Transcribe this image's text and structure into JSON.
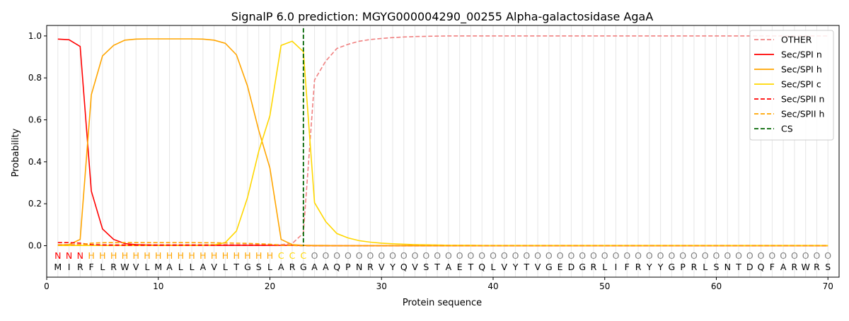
{
  "chart_data": {
    "type": "line",
    "title": "SignalP 6.0 prediction: MGYG000004290_00255 Alpha-galactosidase AgaA",
    "xlabel": "Protein sequence",
    "ylabel": "Probability",
    "xlim": [
      0,
      71
    ],
    "ylim": [
      -0.15,
      1.05
    ],
    "x_ticks": [
      0,
      10,
      20,
      30,
      40,
      50,
      60,
      70
    ],
    "y_ticks": [
      0.0,
      0.2,
      0.4,
      0.6,
      0.8,
      1.0
    ],
    "y_tick_labels": [
      "0.0",
      "0.2",
      "0.4",
      "0.6",
      "0.8",
      "1.0"
    ],
    "grid": "vertical lines at every residue",
    "legend_position": "top-right",
    "sequence": [
      "M",
      "I",
      "R",
      "F",
      "L",
      "R",
      "W",
      "V",
      "L",
      "M",
      "A",
      "L",
      "L",
      "A",
      "V",
      "L",
      "T",
      "G",
      "S",
      "L",
      "A",
      "R",
      "G",
      "A",
      "A",
      "Q",
      "P",
      "N",
      "R",
      "V",
      "Y",
      "Q",
      "V",
      "S",
      "T",
      "A",
      "E",
      "T",
      "Q",
      "L",
      "V",
      "Y",
      "T",
      "V",
      "G",
      "E",
      "D",
      "G",
      "R",
      "L",
      "I",
      "F",
      "R",
      "Y",
      "Y",
      "G",
      "P",
      "R",
      "L",
      "S",
      "N",
      "T",
      "D",
      "Q",
      "F",
      "A",
      "R",
      "W",
      "R",
      "S"
    ],
    "region_labels": [
      "N",
      "N",
      "N",
      "H",
      "H",
      "H",
      "H",
      "H",
      "H",
      "H",
      "H",
      "H",
      "H",
      "H",
      "H",
      "H",
      "H",
      "H",
      "H",
      "H",
      "C",
      "C",
      "C",
      "O",
      "O",
      "O",
      "O",
      "O",
      "O",
      "O",
      "O",
      "O",
      "O",
      "O",
      "O",
      "O",
      "O",
      "O",
      "O",
      "O",
      "O",
      "O",
      "O",
      "O",
      "O",
      "O",
      "O",
      "O",
      "O",
      "O",
      "O",
      "O",
      "O",
      "O",
      "O",
      "O",
      "O",
      "O",
      "O",
      "O",
      "O",
      "O",
      "O",
      "O",
      "O",
      "O",
      "O",
      "O",
      "O",
      "O"
    ],
    "region_colors": {
      "N": "#ff0000",
      "H": "#ffa500",
      "C": "#ffd700",
      "O": "#808080"
    },
    "cleavage_site": 23,
    "series": [
      {
        "name": "OTHER",
        "color": "#f08080",
        "dash": true,
        "values": [
          0.005,
          0.005,
          0.005,
          0.005,
          0.005,
          0.005,
          0.005,
          0.005,
          0.005,
          0.005,
          0.005,
          0.005,
          0.005,
          0.005,
          0.005,
          0.005,
          0.005,
          0.005,
          0.005,
          0.005,
          0.005,
          0.01,
          0.06,
          0.79,
          0.88,
          0.94,
          0.96,
          0.975,
          0.983,
          0.988,
          0.992,
          0.995,
          0.997,
          0.998,
          0.999,
          1,
          1,
          1,
          1,
          1,
          1,
          1,
          1,
          1,
          1,
          1,
          1,
          1,
          1,
          1,
          1,
          1,
          1,
          1,
          1,
          1,
          1,
          1,
          1,
          1,
          1,
          1,
          1,
          1,
          1,
          1,
          1,
          1,
          1,
          1
        ]
      },
      {
        "name": "Sec/SPI n",
        "color": "#ff0000",
        "dash": false,
        "values": [
          0.985,
          0.982,
          0.95,
          0.26,
          0.08,
          0.03,
          0.01,
          0.005,
          0.003,
          0.002,
          0.002,
          0.002,
          0.002,
          0.002,
          0.002,
          0.002,
          0.002,
          0.002,
          0.002,
          0.002,
          0.002,
          0.002,
          0.001,
          0,
          0,
          0,
          0,
          0,
          0,
          0,
          0,
          0,
          0,
          0,
          0,
          0,
          0,
          0,
          0,
          0,
          0,
          0,
          0,
          0,
          0,
          0,
          0,
          0,
          0,
          0,
          0,
          0,
          0,
          0,
          0,
          0,
          0,
          0,
          0,
          0,
          0,
          0,
          0,
          0,
          0,
          0,
          0,
          0,
          0,
          0
        ]
      },
      {
        "name": "Sec/SPI h",
        "color": "#ffa500",
        "dash": false,
        "values": [
          0.003,
          0.005,
          0.03,
          0.72,
          0.905,
          0.955,
          0.98,
          0.985,
          0.986,
          0.986,
          0.986,
          0.986,
          0.986,
          0.985,
          0.98,
          0.965,
          0.91,
          0.76,
          0.55,
          0.37,
          0.03,
          0.005,
          0.002,
          0.001,
          0.001,
          0,
          0,
          0,
          0,
          0,
          0,
          0,
          0,
          0,
          0,
          0,
          0,
          0,
          0,
          0,
          0,
          0,
          0,
          0,
          0,
          0,
          0,
          0,
          0,
          0,
          0,
          0,
          0,
          0,
          0,
          0,
          0,
          0,
          0,
          0,
          0,
          0,
          0,
          0,
          0,
          0,
          0,
          0,
          0,
          0
        ]
      },
      {
        "name": "Sec/SPI c",
        "color": "#ffd700",
        "dash": false,
        "values": [
          0.001,
          0.001,
          0.001,
          0.001,
          0.001,
          0.001,
          0.001,
          0.001,
          0.001,
          0.001,
          0.001,
          0.001,
          0.001,
          0.002,
          0.004,
          0.015,
          0.07,
          0.23,
          0.45,
          0.62,
          0.955,
          0.975,
          0.925,
          0.205,
          0.115,
          0.058,
          0.037,
          0.024,
          0.017,
          0.012,
          0.009,
          0.007,
          0.005,
          0.004,
          0.003,
          0.002,
          0.002,
          0.002,
          0.001,
          0.001,
          0.001,
          0.001,
          0.001,
          0.001,
          0.001,
          0.001,
          0.001,
          0.001,
          0.001,
          0.001,
          0.001,
          0.001,
          0.001,
          0.001,
          0.001,
          0.001,
          0.001,
          0.001,
          0.001,
          0.001,
          0.001,
          0.001,
          0.001,
          0.001,
          0.001,
          0.001,
          0.001,
          0.001,
          0.001,
          0.001
        ]
      },
      {
        "name": "Sec/SPII n",
        "color": "#ff0000",
        "dash": true,
        "values": [
          0.015,
          0.015,
          0.012,
          0.005,
          0.003,
          0.002,
          0.002,
          0.002,
          0.002,
          0.002,
          0.002,
          0.002,
          0.002,
          0.002,
          0.002,
          0.002,
          0.002,
          0.002,
          0.002,
          0.002,
          0.001,
          0.001,
          0,
          0,
          0,
          0,
          0,
          0,
          0,
          0,
          0,
          0,
          0,
          0,
          0,
          0,
          0,
          0,
          0,
          0,
          0,
          0,
          0,
          0,
          0,
          0,
          0,
          0,
          0,
          0,
          0,
          0,
          0,
          0,
          0,
          0,
          0,
          0,
          0,
          0,
          0,
          0,
          0,
          0,
          0,
          0,
          0,
          0,
          0,
          0
        ]
      },
      {
        "name": "Sec/SPII h",
        "color": "#ffa500",
        "dash": true,
        "values": [
          0.002,
          0.003,
          0.005,
          0.012,
          0.014,
          0.015,
          0.015,
          0.015,
          0.015,
          0.015,
          0.015,
          0.015,
          0.015,
          0.014,
          0.014,
          0.013,
          0.012,
          0.011,
          0.009,
          0.007,
          0.002,
          0.001,
          0,
          0,
          0,
          0,
          0,
          0,
          0,
          0,
          0,
          0,
          0,
          0,
          0,
          0,
          0,
          0,
          0,
          0,
          0,
          0,
          0,
          0,
          0,
          0,
          0,
          0,
          0,
          0,
          0,
          0,
          0,
          0,
          0,
          0,
          0,
          0,
          0,
          0,
          0,
          0,
          0,
          0,
          0,
          0,
          0,
          0,
          0,
          0
        ]
      }
    ],
    "legend": [
      {
        "name": "OTHER",
        "color": "#f08080",
        "dash": true
      },
      {
        "name": "Sec/SPI n",
        "color": "#ff0000",
        "dash": false
      },
      {
        "name": "Sec/SPI h",
        "color": "#ffa500",
        "dash": false
      },
      {
        "name": "Sec/SPI c",
        "color": "#ffd700",
        "dash": false
      },
      {
        "name": "Sec/SPII n",
        "color": "#ff0000",
        "dash": true
      },
      {
        "name": "Sec/SPII h",
        "color": "#ffa500",
        "dash": true
      },
      {
        "name": "CS",
        "color": "#006400",
        "dash": true
      }
    ]
  }
}
